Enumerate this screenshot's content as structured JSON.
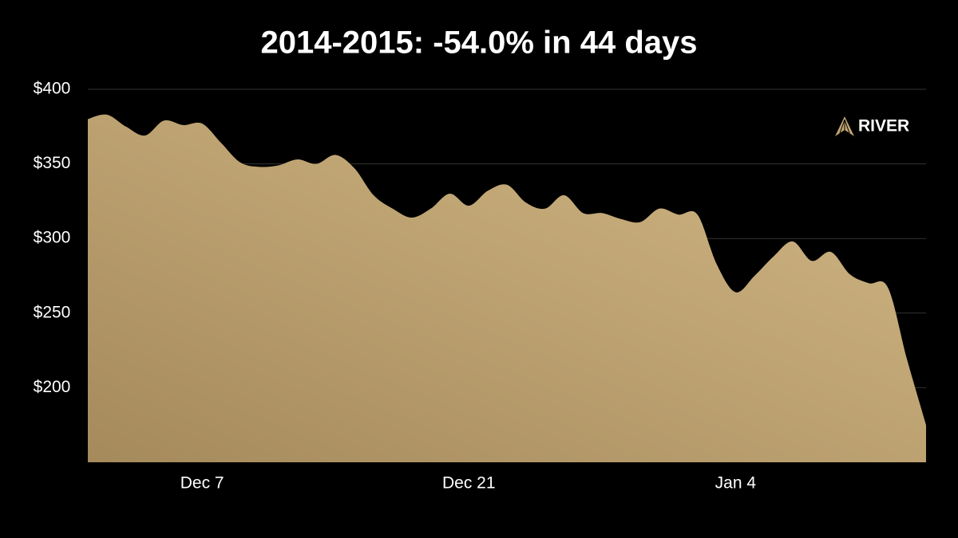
{
  "chart_data": {
    "type": "area",
    "title": "2014-2015: -54.0% in 44 days",
    "annotation": "RIVER",
    "categories": [
      null,
      null,
      null,
      null,
      null,
      null,
      "Dec 7",
      null,
      null,
      null,
      null,
      null,
      null,
      null,
      null,
      null,
      null,
      null,
      null,
      null,
      "Dec 21",
      null,
      null,
      null,
      null,
      null,
      null,
      null,
      null,
      null,
      null,
      null,
      null,
      null,
      "Jan 4",
      null,
      null,
      null,
      null,
      null,
      null,
      null,
      null,
      null,
      null
    ],
    "values": [
      380,
      383,
      375,
      369,
      379,
      376,
      377,
      364,
      351,
      348,
      349,
      353,
      350,
      356,
      347,
      329,
      320,
      314,
      320,
      330,
      322,
      332,
      336,
      324,
      320,
      329,
      317,
      317,
      313,
      311,
      320,
      316,
      316,
      283,
      264,
      275,
      288,
      298,
      285,
      291,
      276,
      270,
      267,
      219,
      175
    ],
    "color": "#c2a572",
    "ylim": [
      150,
      400
    ],
    "yticks": [
      {
        "value": 200,
        "label": "$200"
      },
      {
        "value": 250,
        "label": "$250"
      },
      {
        "value": 300,
        "label": "$300"
      },
      {
        "value": 350,
        "label": "$350"
      },
      {
        "value": 400,
        "label": "$400"
      }
    ],
    "grid": true
  }
}
